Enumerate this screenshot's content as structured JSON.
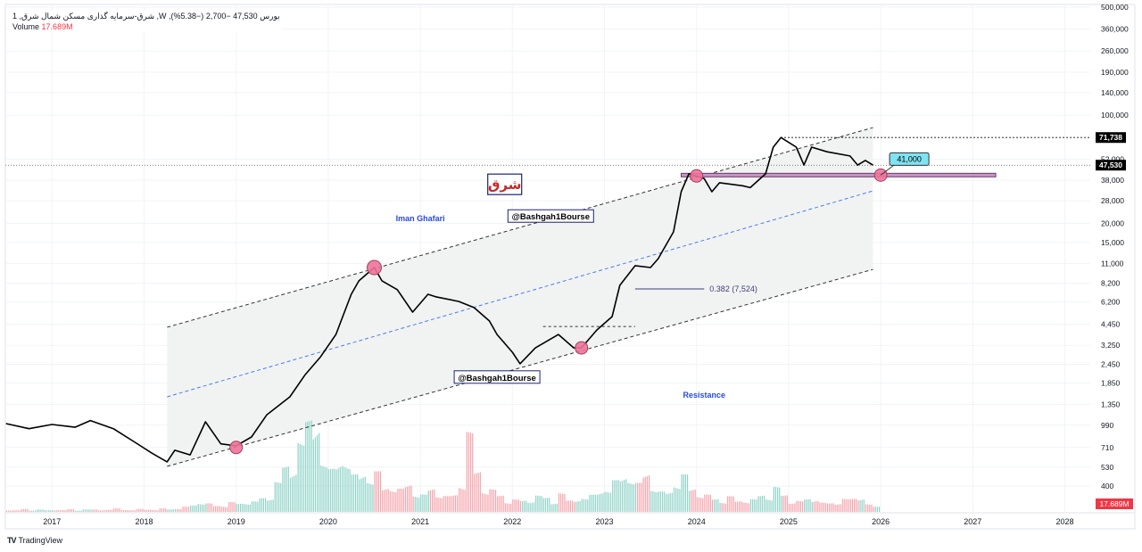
{
  "header": {
    "symbol_title": "1 ,شرق-سرمایه گذاری مسکن شمال شرق ,W ,بورس",
    "last_price": "47,530",
    "change": "−2,700",
    "change_pct": "(−5.38%)",
    "volume_label": "Volume",
    "volume_value": "17.689M"
  },
  "branding": {
    "logo_text": "TradingView"
  },
  "chart_data": {
    "type": "line",
    "scale": "log",
    "grid": true,
    "ylim": [
      400,
      500000
    ],
    "xlim": [
      "2016-07",
      "2028-06"
    ],
    "x_ticks": [
      "2017",
      "2018",
      "2019",
      "2020",
      "2021",
      "2022",
      "2023",
      "2024",
      "2025",
      "2026",
      "2027",
      "2028"
    ],
    "y_ticks": [
      "500,000",
      "360,000",
      "260,000",
      "190,000",
      "140,000",
      "100,000",
      "52,000",
      "38,000",
      "28,000",
      "20,000",
      "15,000",
      "11,000",
      "8,200",
      "6,200",
      "4,450",
      "3,250",
      "2,450",
      "1,850",
      "1,350",
      "990",
      "710",
      "530",
      "400"
    ],
    "price_badges": [
      {
        "label": "71,738",
        "value": 71738,
        "color": "#000000"
      },
      {
        "label": "47,530",
        "value": 47530,
        "color": "#000000"
      }
    ],
    "volume_badge": {
      "label": "17.689M",
      "color": "#f23645"
    },
    "price": [
      [
        "2016-07",
        1014
      ],
      [
        "2016-10",
        940
      ],
      [
        "2017-01",
        1000
      ],
      [
        "2017-04",
        960
      ],
      [
        "2017-06",
        1060
      ],
      [
        "2017-09",
        940
      ],
      [
        "2017-12",
        757
      ],
      [
        "2018-02",
        653
      ],
      [
        "2018-04",
        573
      ],
      [
        "2018-05",
        681
      ],
      [
        "2018-07",
        636
      ],
      [
        "2018-09",
        1040
      ],
      [
        "2018-11",
        750
      ],
      [
        "2019-01",
        728
      ],
      [
        "2019-03",
        830
      ],
      [
        "2019-05",
        1155
      ],
      [
        "2019-08",
        1510
      ],
      [
        "2019-10",
        2100
      ],
      [
        "2019-12",
        2740
      ],
      [
        "2020-02",
        3820
      ],
      [
        "2020-04",
        6950
      ],
      [
        "2020-05",
        8490
      ],
      [
        "2020-07",
        10350
      ],
      [
        "2020-08",
        8490
      ],
      [
        "2020-10",
        7450
      ],
      [
        "2020-12",
        5330
      ],
      [
        "2021-02",
        6950
      ],
      [
        "2021-03",
        6700
      ],
      [
        "2021-06",
        6250
      ],
      [
        "2021-08",
        5700
      ],
      [
        "2021-10",
        4670
      ],
      [
        "2021-11",
        3820
      ],
      [
        "2022-01",
        2930
      ],
      [
        "2022-02",
        2470
      ],
      [
        "2022-04",
        3130
      ],
      [
        "2022-07",
        3820
      ],
      [
        "2022-09",
        3130
      ],
      [
        "2022-10",
        3130
      ],
      [
        "2022-12",
        4080
      ],
      [
        "2023-02",
        4990
      ],
      [
        "2023-03",
        7940
      ],
      [
        "2023-05",
        10640
      ],
      [
        "2023-07",
        10350
      ],
      [
        "2023-08",
        11800
      ],
      [
        "2023-10",
        17600
      ],
      [
        "2023-11",
        32000
      ],
      [
        "2023-12",
        41800
      ],
      [
        "2024-02",
        38900
      ],
      [
        "2024-03",
        32000
      ],
      [
        "2024-04",
        36600
      ],
      [
        "2024-07",
        35000
      ],
      [
        "2024-08",
        34000
      ],
      [
        "2024-10",
        41800
      ],
      [
        "2024-11",
        62200
      ],
      [
        "2024-12",
        71738
      ],
      [
        "2025-02",
        62200
      ],
      [
        "2025-03",
        47600
      ],
      [
        "2025-04",
        62200
      ],
      [
        "2025-06",
        58000
      ],
      [
        "2025-09",
        54500
      ],
      [
        "2025-10",
        47600
      ],
      [
        "2025-11",
        51000
      ],
      [
        "2025-12",
        47530
      ]
    ],
    "volume_start": "2016-07",
    "volume_unit": "M",
    "volume": [
      8,
      6,
      10,
      7,
      9,
      6,
      8,
      7,
      9,
      6,
      10,
      8,
      7,
      9,
      12,
      8,
      7,
      10,
      9,
      8,
      12,
      10,
      14,
      18,
      25,
      40,
      30,
      22,
      28,
      35,
      30,
      45,
      38,
      50,
      70,
      110,
      160,
      200,
      260,
      320,
      400,
      180,
      150,
      220,
      180,
      130,
      160,
      120,
      140,
      100,
      90,
      80,
      110,
      70,
      60,
      90,
      70,
      55,
      65,
      120,
      280,
      150,
      100,
      80,
      60,
      50,
      45,
      40,
      55,
      60,
      50,
      45,
      70,
      40,
      55,
      50,
      60,
      90,
      80,
      110,
      150,
      120,
      100,
      160,
      90,
      70,
      80,
      110,
      130,
      90,
      70,
      60,
      50,
      45,
      55,
      40,
      50,
      45,
      60,
      70,
      90,
      60,
      50,
      40,
      45,
      60,
      35,
      30,
      40,
      50,
      45,
      60,
      30,
      17.689
    ],
    "volume_colors": {
      "up": "#8fd3c8",
      "down": "#f5a3ab"
    },
    "channel": {
      "start": "2018-04",
      "end": "2025-12",
      "upper": [
        4255,
        83200
      ],
      "middle": [
        1510,
        32400
      ],
      "lower": [
        536,
        10070
      ],
      "fill": "#f1f3f2"
    },
    "annotations": {
      "resistance_zone": {
        "value": 41000,
        "start": "2023-11",
        "end": "2027-04",
        "color": "#c994c7"
      },
      "high_line": {
        "value": 71738,
        "start": "2024-12"
      },
      "last_line": {
        "value": 47530
      },
      "short_dash": {
        "value": 4300,
        "start": "2022-05",
        "end": "2023-05"
      },
      "fib_line": {
        "value": 7524,
        "start": "2023-05",
        "end": "2024-02",
        "label": "0.382 (7,524)"
      },
      "callout": {
        "label": "41,000",
        "value": 41000,
        "at": "2026-01",
        "color": "#7fe3f2"
      },
      "circles": [
        [
          "2019-01",
          710
        ],
        [
          "2020-07",
          10350
        ],
        [
          "2022-10",
          3130
        ],
        [
          "2024-01",
          40500
        ],
        [
          "2026-01",
          41000
        ]
      ],
      "circle_color": "#f0739a",
      "texts": [
        {
          "label": "Iman Ghafari",
          "at": "2021-01",
          "value": 21500,
          "color": "#2a4bd7"
        },
        {
          "label": "@Bashgah1Bourse",
          "at": "2022-06",
          "value": 22000,
          "color": "#000000",
          "boxed": true
        },
        {
          "label": "@Bashgah1Bourse",
          "at": "2021-11",
          "value": 2000,
          "color": "#000000",
          "boxed": true
        },
        {
          "label": "Resistance",
          "at": "2024-02",
          "value": 1550,
          "color": "#2a4bd7"
        }
      ],
      "logo": {
        "label": "شرق",
        "at": "2021-12",
        "value": 35500,
        "color": "#c62828",
        "border": "#1a237e"
      }
    }
  }
}
